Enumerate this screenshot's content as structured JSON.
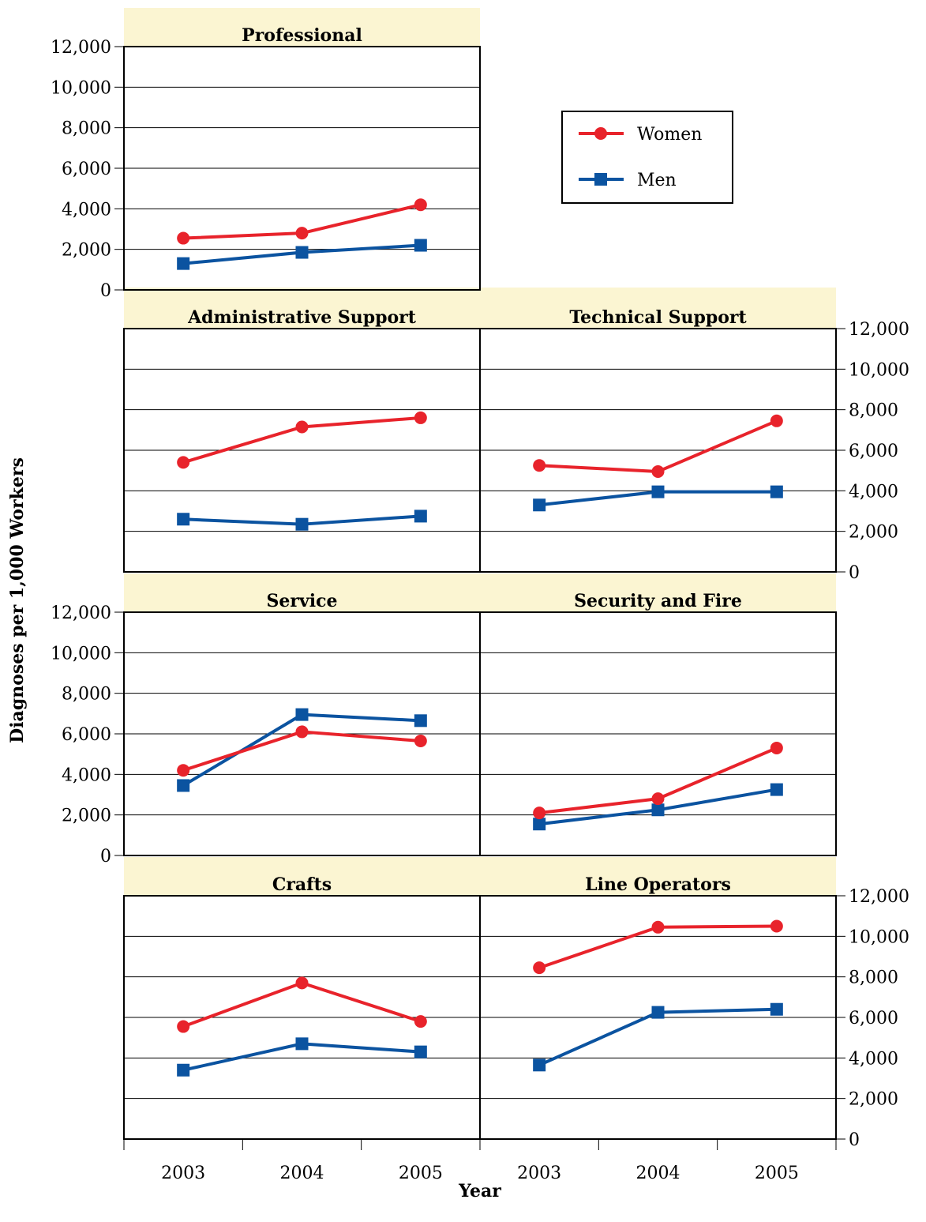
{
  "chart_data": {
    "type": "line",
    "ylabel": "Diagnoses per 1,000 Workers",
    "xlabel": "Year",
    "x": [
      "2003",
      "2004",
      "2005"
    ],
    "ylim": [
      0,
      12000
    ],
    "yticks": [
      "0",
      "2,000",
      "4,000",
      "6,000",
      "8,000",
      "10,000",
      "12,000"
    ],
    "grid": true,
    "legend": {
      "placement": "top-right",
      "entries": [
        {
          "name": "Women",
          "color": "#e8232b",
          "marker": "circle"
        },
        {
          "name": "Men",
          "color": "#0b53a0",
          "marker": "square"
        }
      ]
    },
    "panels": [
      {
        "title": "Professional",
        "series": [
          {
            "name": "Women",
            "values": [
              2550,
              2800,
              4200
            ]
          },
          {
            "name": "Men",
            "values": [
              1300,
              1850,
              2200
            ]
          }
        ]
      },
      {
        "title": "Administrative Support",
        "series": [
          {
            "name": "Women",
            "values": [
              5400,
              7150,
              7600
            ]
          },
          {
            "name": "Men",
            "values": [
              2600,
              2350,
              2750
            ]
          }
        ]
      },
      {
        "title": "Technical Support",
        "series": [
          {
            "name": "Women",
            "values": [
              5250,
              4950,
              7450
            ]
          },
          {
            "name": "Men",
            "values": [
              3300,
              3950,
              3950
            ]
          }
        ]
      },
      {
        "title": "Service",
        "series": [
          {
            "name": "Women",
            "values": [
              4200,
              6100,
              5650
            ]
          },
          {
            "name": "Men",
            "values": [
              3450,
              6950,
              6650
            ]
          }
        ]
      },
      {
        "title": "Security and Fire",
        "series": [
          {
            "name": "Women",
            "values": [
              2100,
              2800,
              5300
            ]
          },
          {
            "name": "Men",
            "values": [
              1550,
              2250,
              3250
            ]
          }
        ]
      },
      {
        "title": "Crafts",
        "series": [
          {
            "name": "Women",
            "values": [
              5550,
              7700,
              5800
            ]
          },
          {
            "name": "Men",
            "values": [
              3400,
              4700,
              4300
            ]
          }
        ]
      },
      {
        "title": "Line Operators",
        "series": [
          {
            "name": "Women",
            "values": [
              8450,
              10450,
              10500
            ]
          },
          {
            "name": "Men",
            "values": [
              3650,
              6250,
              6400
            ]
          }
        ]
      }
    ]
  }
}
